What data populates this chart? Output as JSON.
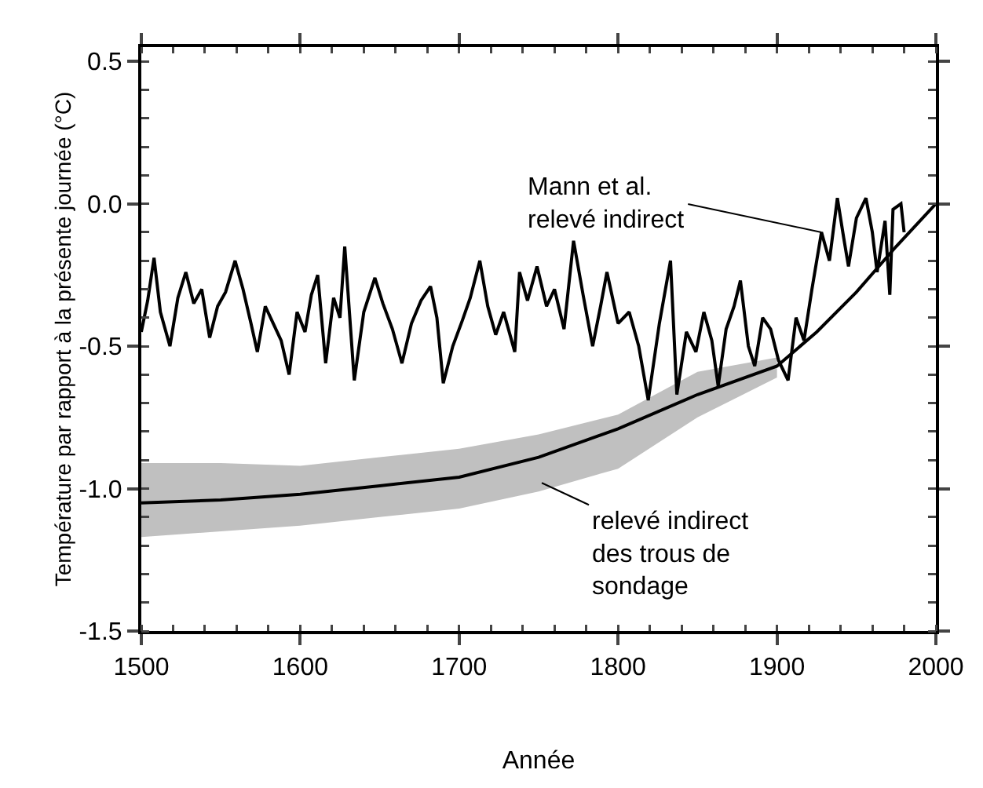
{
  "chart_data": {
    "type": "line",
    "xlabel": "Année",
    "ylabel": "Température par rapport à la présente journée (°C)",
    "xlim": [
      1500,
      2000
    ],
    "xticks": [
      1500,
      1600,
      1700,
      1800,
      1900,
      2000
    ],
    "ylim": [
      -1.5,
      0.55
    ],
    "yticks": [
      {
        "value": -1.5,
        "label": "-1.5"
      },
      {
        "value": -1,
        "label": "-1.0"
      },
      {
        "value": -0.5,
        "label": "-0.5"
      },
      {
        "value": 0,
        "label": "0.0"
      },
      {
        "value": 0.5,
        "label": "0.5"
      }
    ],
    "marker": "none",
    "line_style": "solid",
    "series": [
      {
        "color": "#000000",
        "x": [
          1500,
          1504,
          1508,
          1512,
          1518,
          1523,
          1528,
          1533,
          1538,
          1543,
          1548,
          1553,
          1559,
          1564,
          1569,
          1573,
          1578,
          1583,
          1588,
          1593,
          1598,
          1603,
          1607,
          1611,
          1616,
          1621,
          1625,
          1628,
          1634,
          1640,
          1647,
          1652,
          1658,
          1664,
          1670,
          1676,
          1682,
          1686,
          1690,
          1696,
          1702,
          1707,
          1713,
          1718,
          1723,
          1728,
          1735,
          1738,
          1743,
          1749,
          1755,
          1760,
          1766,
          1772,
          1778,
          1784,
          1789,
          1793,
          1800,
          1807,
          1813,
          1819,
          1826,
          1833,
          1837,
          1843,
          1849,
          1854,
          1859,
          1863,
          1868,
          1873,
          1877,
          1882,
          1886,
          1891,
          1896,
          1901,
          1907,
          1912,
          1917,
          1922,
          1928,
          1933,
          1938,
          1942,
          1945,
          1950,
          1956,
          1960,
          1963,
          1968,
          1971,
          1973,
          1978,
          1980
        ],
        "values": [
          -0.45,
          -0.34,
          -0.19,
          -0.38,
          -0.5,
          -0.33,
          -0.24,
          -0.35,
          -0.3,
          -0.47,
          -0.36,
          -0.31,
          -0.2,
          -0.3,
          -0.42,
          -0.52,
          -0.36,
          -0.42,
          -0.48,
          -0.6,
          -0.38,
          -0.45,
          -0.32,
          -0.25,
          -0.56,
          -0.33,
          -0.4,
          -0.15,
          -0.62,
          -0.38,
          -0.26,
          -0.35,
          -0.44,
          -0.56,
          -0.42,
          -0.34,
          -0.29,
          -0.4,
          -0.63,
          -0.5,
          -0.41,
          -0.33,
          -0.2,
          -0.36,
          -0.46,
          -0.38,
          -0.52,
          -0.24,
          -0.34,
          -0.22,
          -0.36,
          -0.3,
          -0.44,
          -0.13,
          -0.32,
          -0.5,
          -0.36,
          -0.24,
          -0.42,
          -0.38,
          -0.5,
          -0.69,
          -0.42,
          -0.2,
          -0.67,
          -0.45,
          -0.52,
          -0.38,
          -0.48,
          -0.64,
          -0.44,
          -0.36,
          -0.27,
          -0.5,
          -0.57,
          -0.4,
          -0.44,
          -0.55,
          -0.62,
          -0.4,
          -0.48,
          -0.3,
          -0.1,
          -0.2,
          0.02,
          -0.12,
          -0.22,
          -0.05,
          0.02,
          -0.1,
          -0.24,
          -0.06,
          -0.32,
          -0.02,
          0.0,
          -0.1
        ]
      },
      {
        "color": "#000000",
        "x": [
          1500,
          1550,
          1600,
          1650,
          1700,
          1750,
          1800,
          1850,
          1900,
          1925,
          1950,
          1975,
          2000
        ],
        "values": [
          -1.05,
          -1.04,
          -1.02,
          -0.99,
          -0.96,
          -0.89,
          -0.79,
          -0.67,
          -0.57,
          -0.45,
          -0.31,
          -0.15,
          0.0
        ],
        "lower": [
          -1.17,
          -1.15,
          -1.13,
          -1.1,
          -1.07,
          -1.01,
          -0.93,
          -0.75,
          -0.61,
          null,
          null,
          null,
          null
        ],
        "upper": [
          -0.91,
          -0.91,
          -0.92,
          -0.89,
          -0.86,
          -0.81,
          -0.74,
          -0.59,
          -0.54,
          null,
          null,
          null,
          null
        ]
      }
    ],
    "annotations": [
      {
        "text": "Mann et al.\nrelevé indirect",
        "x": 1928,
        "y": -0.1
      },
      {
        "text": "relevé indirect\ndes trous de\nsondage",
        "x": 1752,
        "y": -0.98
      }
    ]
  }
}
